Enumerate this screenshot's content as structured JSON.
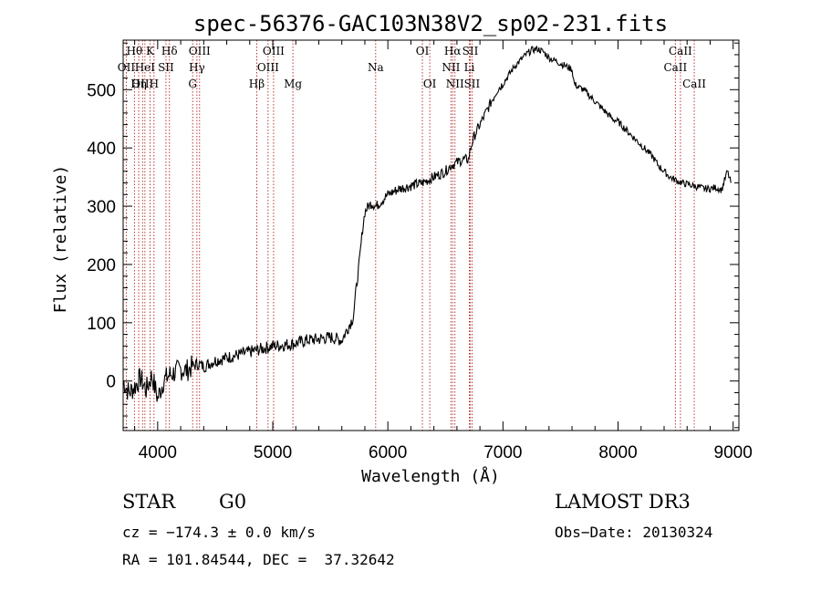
{
  "chart_data": {
    "type": "line",
    "title": "spec-56376-GAC103N38V2_sp02-231.fits",
    "xlabel": "Wavelength (Å)",
    "ylabel": "Flux (relative)",
    "xlim": [
      3700,
      9050
    ],
    "ylim": [
      -85,
      585
    ],
    "xticks": [
      4000,
      5000,
      6000,
      7000,
      8000,
      9000
    ],
    "yticks": [
      0,
      100,
      200,
      300,
      400,
      500
    ],
    "grid": false,
    "series": [
      {
        "name": "flux",
        "x": [
          3700,
          3750,
          3800,
          3850,
          3900,
          3950,
          4000,
          4050,
          4100,
          4150,
          4200,
          4250,
          4300,
          4350,
          4400,
          4450,
          4500,
          4600,
          4700,
          4800,
          4900,
          5000,
          5100,
          5200,
          5300,
          5400,
          5500,
          5600,
          5650,
          5700,
          5720,
          5750,
          5780,
          5800,
          5830,
          5860,
          5900,
          5950,
          6000,
          6100,
          6200,
          6300,
          6400,
          6450,
          6500,
          6550,
          6600,
          6650,
          6700,
          6720,
          6750,
          6800,
          6850,
          6900,
          6950,
          7000,
          7050,
          7100,
          7150,
          7200,
          7250,
          7300,
          7350,
          7400,
          7450,
          7500,
          7550,
          7600,
          7620,
          7650,
          7700,
          7750,
          7800,
          7850,
          7900,
          7950,
          8000,
          8050,
          8100,
          8150,
          8200,
          8250,
          8300,
          8350,
          8400,
          8450,
          8500,
          8550,
          8600,
          8650,
          8700,
          8750,
          8800,
          8850,
          8900,
          8950,
          8980
        ],
        "values": [
          0,
          -20,
          -10,
          5,
          -15,
          10,
          -30,
          0,
          10,
          15,
          20,
          18,
          25,
          30,
          25,
          30,
          35,
          40,
          45,
          50,
          55,
          60,
          62,
          65,
          70,
          72,
          75,
          70,
          90,
          110,
          150,
          200,
          260,
          290,
          300,
          305,
          300,
          310,
          320,
          330,
          335,
          340,
          350,
          355,
          360,
          370,
          375,
          380,
          380,
          400,
          420,
          440,
          460,
          480,
          500,
          510,
          525,
          540,
          550,
          560,
          568,
          570,
          565,
          555,
          550,
          545,
          540,
          535,
          510,
          505,
          500,
          490,
          480,
          470,
          460,
          450,
          445,
          435,
          425,
          415,
          405,
          395,
          385,
          370,
          360,
          350,
          345,
          340,
          338,
          335,
          333,
          330,
          330,
          332,
          328,
          360,
          340
        ]
      }
    ],
    "lines": [
      {
        "wave": 3798,
        "label": "Hθ",
        "row": 1
      },
      {
        "wave": 3835,
        "label": "Hη",
        "row": 3
      },
      {
        "wave": 3727,
        "label": "OII",
        "row": 2
      },
      {
        "wave": 3869,
        "label": "OIII",
        "row": 3
      },
      {
        "wave": 3889,
        "label": "HeI",
        "row": 2
      },
      {
        "wave": 3934,
        "label": "K",
        "row": 1
      },
      {
        "wave": 3968,
        "label": "H",
        "row": 3
      },
      {
        "wave": 4072,
        "label": "SII",
        "row": 2
      },
      {
        "wave": 4102,
        "label": "Hδ",
        "row": 1
      },
      {
        "wave": 4304,
        "label": "G",
        "row": 3
      },
      {
        "wave": 4341,
        "label": "Hγ",
        "row": 2
      },
      {
        "wave": 4364,
        "label": "OIII",
        "row": 1
      },
      {
        "wave": 4861,
        "label": "Hβ",
        "row": 3
      },
      {
        "wave": 4959,
        "label": "OIII",
        "row": 2
      },
      {
        "wave": 5007,
        "label": "OIII",
        "row": 1
      },
      {
        "wave": 5175,
        "label": "Mg",
        "row": 3
      },
      {
        "wave": 5894,
        "label": "Na",
        "row": 2
      },
      {
        "wave": 6300,
        "label": "OI",
        "row": 1
      },
      {
        "wave": 6364,
        "label": "OI",
        "row": 3
      },
      {
        "wave": 6548,
        "label": "NII",
        "row": 2
      },
      {
        "wave": 6563,
        "label": "Hα",
        "row": 1
      },
      {
        "wave": 6583,
        "label": "NII",
        "row": 3
      },
      {
        "wave": 6708,
        "label": "Li",
        "row": 2
      },
      {
        "wave": 6716,
        "label": "SII",
        "row": 1
      },
      {
        "wave": 6731,
        "label": "SII",
        "row": 3
      },
      {
        "wave": 8498,
        "label": "CaII",
        "row": 2
      },
      {
        "wave": 8542,
        "label": "CaII",
        "row": 1
      },
      {
        "wave": 8662,
        "label": "CaII",
        "row": 3
      }
    ]
  },
  "info": {
    "class": "STAR",
    "subclass": "G0",
    "survey": "LAMOST DR3",
    "cz": "cz = −174.3 ± 0.0 km/s",
    "obs_date": "Obs−Date: 20130324",
    "radec": "RA = 101.84544, DEC =  37.32642"
  },
  "colors": {
    "line_marker": "#b22222",
    "spectrum": "#000000"
  }
}
